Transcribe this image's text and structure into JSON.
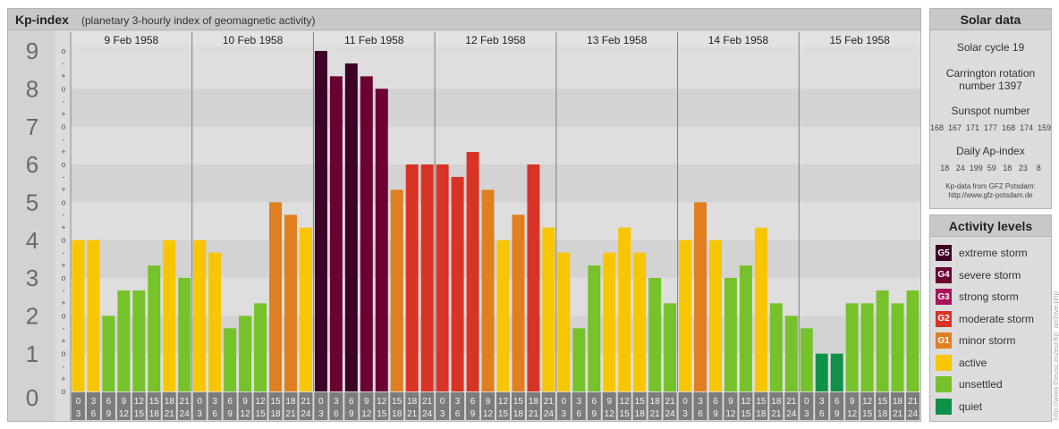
{
  "chart_panel": {
    "title": "Kp-index",
    "subtitle": "(planetary 3-hourly index of geomagnetic activity)"
  },
  "chart_data": {
    "type": "bar",
    "y_range": [
      0,
      9
    ],
    "y_ticks": [
      "0",
      "1",
      "2",
      "3",
      "4",
      "5",
      "6",
      "7",
      "8",
      "9"
    ],
    "minor_ticks": [
      "o",
      "+",
      "-"
    ],
    "interval_labels": [
      [
        "0",
        "3"
      ],
      [
        "3",
        "6"
      ],
      [
        "6",
        "9"
      ],
      [
        "9",
        "12"
      ],
      [
        "12",
        "15"
      ],
      [
        "15",
        "18"
      ],
      [
        "18",
        "21"
      ],
      [
        "21",
        "24"
      ]
    ],
    "days": [
      {
        "date": "9 Feb 1958",
        "values": [
          4,
          4,
          2,
          2.67,
          2.67,
          3.33,
          4,
          3
        ]
      },
      {
        "date": "10 Feb 1958",
        "values": [
          4,
          3.67,
          1.67,
          2,
          2.33,
          5,
          4.67,
          4.33
        ]
      },
      {
        "date": "11 Feb 1958",
        "values": [
          9,
          8.33,
          8.67,
          8.33,
          8,
          5.33,
          6,
          6
        ]
      },
      {
        "date": "12 Feb 1958",
        "values": [
          6,
          5.67,
          6.33,
          5.33,
          4,
          4.67,
          6,
          4.33
        ]
      },
      {
        "date": "13 Feb 1958",
        "values": [
          3.67,
          1.67,
          3.33,
          3.67,
          4.33,
          3.67,
          3,
          2.33
        ]
      },
      {
        "date": "14 Feb 1958",
        "values": [
          4,
          5,
          4,
          3,
          3.33,
          4.33,
          2.33,
          2
        ]
      },
      {
        "date": "15 Feb 1958",
        "values": [
          1.67,
          1,
          1,
          2.33,
          2.33,
          2.67,
          2.33,
          2.67
        ]
      }
    ]
  },
  "solar_data": {
    "title": "Solar data",
    "solar_cycle": "Solar cycle 19",
    "carrington_line1": "Carrington rotation",
    "carrington_line2": "number 1397",
    "sunspot_title": "Sunspot number",
    "sunspot_values": "168  167  171  177  168  174  159",
    "ap_title": "Daily Ap-index",
    "ap_values": "18   24  199  59   18   23    8",
    "source_line1": "Kp-data from GFZ Potsdam:",
    "source_line2": "http://www.gfz-potsdam.de"
  },
  "activity_levels": {
    "title": "Activity levels",
    "items": [
      {
        "badge": "G5",
        "label": "extreme storm",
        "color": "#3d0026"
      },
      {
        "badge": "G4",
        "label": "severe storm",
        "color": "#6b0033"
      },
      {
        "badge": "G3",
        "label": "strong storm",
        "color": "#a8135a"
      },
      {
        "badge": "G2",
        "label": "moderate storm",
        "color": "#d93325"
      },
      {
        "badge": "G1",
        "label": "minor storm",
        "color": "#e07f1f"
      },
      {
        "badge": "",
        "label": "active",
        "color": "#f8c600"
      },
      {
        "badge": "",
        "label": "unsettled",
        "color": "#76c22a"
      },
      {
        "badge": "",
        "label": "quiet",
        "color": "#109148"
      }
    ]
  },
  "credit": "http://www.theusc.eu/eur/kp_archive.php"
}
